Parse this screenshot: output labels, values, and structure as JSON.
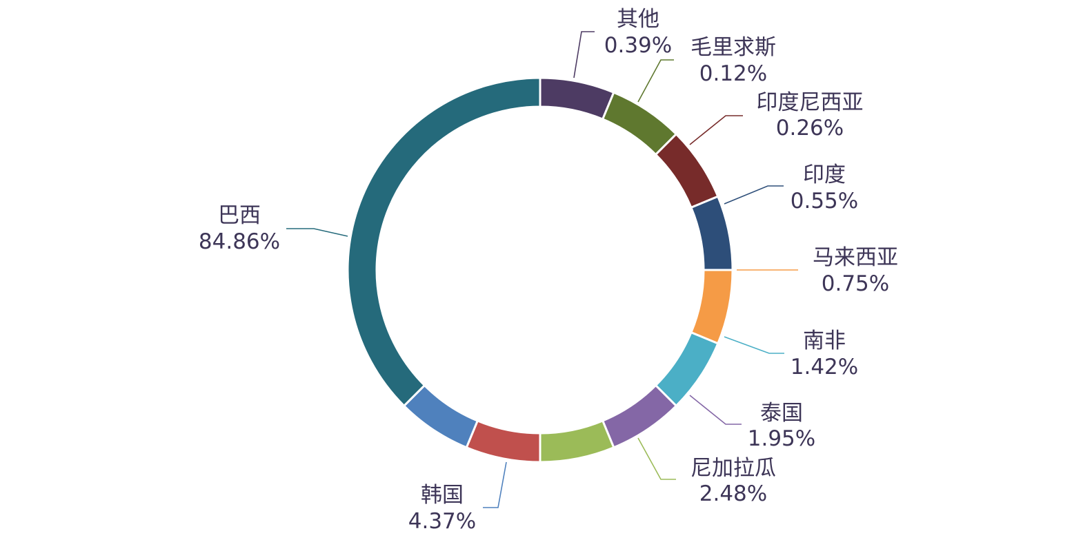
{
  "chart_data": {
    "type": "pie",
    "variant": "donut",
    "title": "",
    "legend": "none",
    "slices": [
      {
        "label": "其他",
        "value": 0.39,
        "pct_text": "0.39%",
        "color": "#4d3b63"
      },
      {
        "label": "毛里求斯",
        "value": 0.12,
        "pct_text": "0.12%",
        "color": "#5f782f"
      },
      {
        "label": "印度尼西亚",
        "value": 0.26,
        "pct_text": "0.26%",
        "color": "#772b2a"
      },
      {
        "label": "印度",
        "value": 0.55,
        "pct_text": "0.55%",
        "color": "#2d4e79"
      },
      {
        "label": "马来西亚",
        "value": 0.75,
        "pct_text": "0.75%",
        "color": "#f59b46"
      },
      {
        "label": "南非",
        "value": 1.42,
        "pct_text": "1.42%",
        "color": "#4bafc6"
      },
      {
        "label": "泰国",
        "value": 1.95,
        "pct_text": "1.95%",
        "color": "#8467a6"
      },
      {
        "label": "尼加拉瓜",
        "value": 2.48,
        "pct_text": "2.48%",
        "color": "#9bbb58"
      },
      {
        "label": "",
        "value": 2.86,
        "pct_text": "",
        "color": "#c0504d"
      },
      {
        "label": "韩国",
        "value": 4.37,
        "pct_text": "4.37%",
        "color": "#4f81bd"
      },
      {
        "label": "巴西",
        "value": 84.86,
        "pct_text": "84.86%",
        "color": "#256a7b"
      }
    ]
  }
}
